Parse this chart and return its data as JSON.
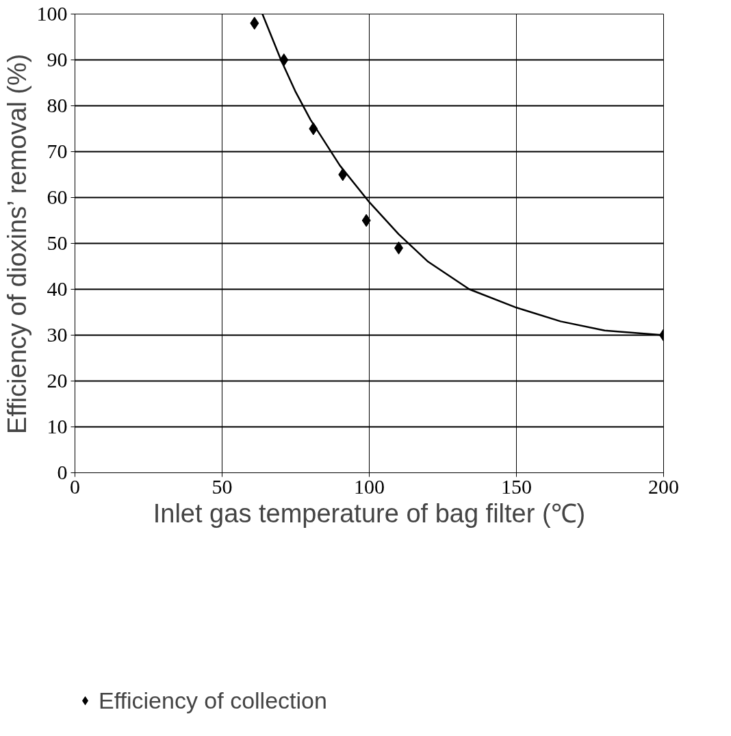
{
  "chart_data": {
    "type": "scatter",
    "xlabel": "Inlet gas temperature of bag filter (℃)",
    "ylabel": "Efficiency of dioxins’ removal (%)",
    "xlim": [
      0,
      200
    ],
    "ylim": [
      0,
      100
    ],
    "xticks": [
      0,
      50,
      100,
      150,
      200
    ],
    "yticks": [
      0,
      10,
      20,
      30,
      40,
      50,
      60,
      70,
      80,
      90,
      100
    ],
    "grid": true,
    "legend": "bottom",
    "series": [
      {
        "name": "Efficiency of collection",
        "color": "#000000",
        "marker": "diamond",
        "x": [
          61,
          71,
          81,
          91,
          99,
          110,
          200
        ],
        "values": [
          98,
          90,
          75,
          65,
          55,
          49,
          30
        ]
      },
      {
        "type": "line",
        "color": "#000000",
        "line_style": "solid",
        "x": [
          63.7,
          70,
          75,
          80,
          90,
          100,
          110,
          120,
          134,
          150,
          165,
          180,
          200
        ],
        "values": [
          100,
          90,
          83,
          77,
          67,
          59,
          52,
          46,
          40,
          36,
          33,
          31,
          30
        ]
      }
    ]
  }
}
